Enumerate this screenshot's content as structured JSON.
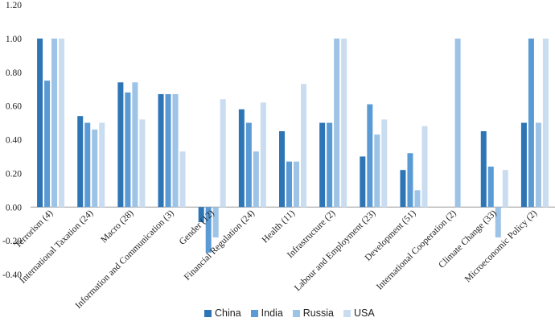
{
  "chart_data": {
    "type": "bar",
    "title": "",
    "xlabel": "",
    "ylabel": "",
    "ylim": [
      -0.4,
      1.2
    ],
    "yticks": [
      "-0.40",
      "-0.20",
      "0.00",
      "0.20",
      "0.40",
      "0.60",
      "0.80",
      "1.00",
      "1.20"
    ],
    "grid": false,
    "legend_position": "bottom",
    "categories": [
      "Terrorism (4)",
      "International Taxation (24)",
      "Macro (28)",
      "Information and Communication (3)",
      "Gender (12)",
      "Financial Regulation (24)",
      "Health (11)",
      "Infrastructure (2)",
      "Labour and Employment (23)",
      "Development (51)",
      "International Cooperation (2)",
      "Climate Change (33)",
      "Microeconomic Policy (2)"
    ],
    "series": [
      {
        "name": "China",
        "color": "#2e75b6",
        "values": [
          1.0,
          0.54,
          0.74,
          0.67,
          -0.09,
          0.58,
          0.45,
          0.5,
          0.3,
          0.22,
          0.0,
          0.45,
          0.5
        ]
      },
      {
        "name": "India",
        "color": "#5b9bd5",
        "values": [
          0.75,
          0.5,
          0.68,
          0.67,
          -0.27,
          0.5,
          0.27,
          0.5,
          0.61,
          0.32,
          0.0,
          0.24,
          1.0
        ]
      },
      {
        "name": "Russia",
        "color": "#9dc3e6",
        "values": [
          1.0,
          0.46,
          0.74,
          0.67,
          -0.18,
          0.33,
          0.27,
          1.0,
          0.43,
          0.1,
          1.0,
          -0.18,
          0.5
        ]
      },
      {
        "name": "USA",
        "color": "#c9dcf0",
        "values": [
          1.0,
          0.5,
          0.52,
          0.33,
          0.64,
          0.62,
          0.73,
          1.0,
          0.52,
          0.48,
          0.0,
          0.22,
          1.0
        ]
      }
    ]
  }
}
